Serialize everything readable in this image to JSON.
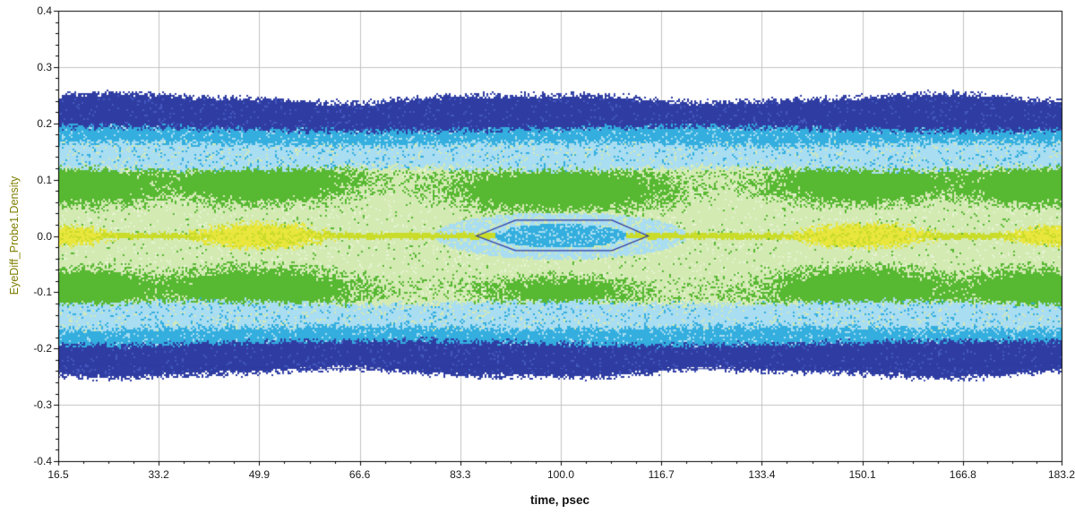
{
  "page": {
    "background": "#ffffff"
  },
  "chart_data": {
    "type": "heatmap",
    "variant": "eye-diagram-density",
    "title": "",
    "xlabel": "time, psec",
    "ylabel": "EyeDiff_Probe1.Density",
    "xlim": [
      16.5,
      183.2
    ],
    "ylim": [
      -0.4,
      0.4
    ],
    "x_ticks": [
      16.5,
      33.2,
      49.9,
      66.6,
      83.3,
      100.0,
      116.7,
      133.4,
      150.1,
      166.8,
      183.2
    ],
    "x_tick_labels": [
      "16.5",
      "33.2",
      "49.9",
      "66.6",
      "83.3",
      "100.0",
      "116.7",
      "133.4",
      "150.1",
      "166.8",
      "183.2"
    ],
    "y_ticks": [
      -0.4,
      -0.3,
      -0.2,
      -0.1,
      0,
      0.1,
      0.2,
      0.3,
      0.4
    ],
    "y_tick_labels": [
      "-0.4",
      "-0.3",
      "-0.2",
      "-0.1",
      "0.0",
      "0.1",
      "0.2",
      "0.3",
      "0.4"
    ],
    "x_minor_per_major": 3,
    "y_minor_per_major": 4,
    "grid": true,
    "colors": {
      "grid": "#c2c2c2",
      "axis": "#000000",
      "tick_label": "#1a1a1a",
      "xlabel": "#111111",
      "ylabel": "#7e7e00",
      "mask": "#3038a0",
      "envelope": "#2e3aa0"
    },
    "palette": {
      "dark_blue": "#2f3da2",
      "blue_speckle": "#4458bf",
      "cyan": "#33aede",
      "light_cyan": "#a9ddf1",
      "pale_green": "#d3eab3",
      "pale_green_light": "#e6f4d2",
      "green": "#57b832",
      "yellow_green": "#c9dc2a",
      "yellow": "#e9e63d"
    },
    "density_model": {
      "outer_edge": 0.245,
      "outer_wave_amp": 0.007,
      "outer_wave_freq": 2.5,
      "outer_wave_phase": 0.4,
      "dark_blue_from": 0.19,
      "cyan_from": 0.163,
      "light_cyan_from": 0.119,
      "pale_green_from": 0.012,
      "center_line_halfwidth": 0.005,
      "green_stripe_v": 0.095,
      "green_stripe_halfwidth": 0.02,
      "edge_jitter": 0.013
    },
    "eye_opening": {
      "t": 100.0,
      "halo_rt": 21,
      "halo_rv": 0.042,
      "core_rt": 11,
      "core_rv": 0.021
    },
    "green_blobs": [
      {
        "t": 20,
        "v": 0.09,
        "st": 12,
        "sv": 0.028,
        "amp": 1
      },
      {
        "t": 20,
        "v": -0.095,
        "st": 12,
        "sv": 0.028,
        "amp": 1
      },
      {
        "t": 49.9,
        "v": 0.095,
        "st": 13,
        "sv": 0.03,
        "amp": 1
      },
      {
        "t": 49.9,
        "v": -0.095,
        "st": 13,
        "sv": 0.03,
        "amp": 1
      },
      {
        "t": 100,
        "v": 0.082,
        "st": 15,
        "sv": 0.032,
        "amp": 1
      },
      {
        "t": 100,
        "v": -0.1,
        "st": 11,
        "sv": 0.024,
        "amp": 0.8
      },
      {
        "t": 150.1,
        "v": 0.095,
        "st": 13,
        "sv": 0.03,
        "amp": 1
      },
      {
        "t": 150.1,
        "v": -0.095,
        "st": 13,
        "sv": 0.03,
        "amp": 1
      },
      {
        "t": 180,
        "v": 0.09,
        "st": 12,
        "sv": 0.028,
        "amp": 1
      },
      {
        "t": 180,
        "v": -0.095,
        "st": 12,
        "sv": 0.028,
        "amp": 1
      }
    ],
    "yellow_blobs": [
      {
        "t": 16.5,
        "v": 0,
        "st": 7,
        "sv": 0.015,
        "amp": 1
      },
      {
        "t": 49.9,
        "v": 0,
        "st": 9,
        "sv": 0.018,
        "amp": 1
      },
      {
        "t": 150.1,
        "v": 0,
        "st": 9,
        "sv": 0.018,
        "amp": 1
      },
      {
        "t": 183.2,
        "v": 0,
        "st": 7,
        "sv": 0.015,
        "amp": 1
      }
    ],
    "cyan_patches": [
      {
        "t": 62,
        "v": -0.135,
        "st": 7,
        "sv": 0.006
      },
      {
        "t": 95,
        "v": -0.142,
        "st": 6,
        "sv": 0.005
      },
      {
        "t": 122,
        "v": -0.135,
        "st": 8,
        "sv": 0.006
      },
      {
        "t": 108,
        "v": 0.139,
        "st": 6,
        "sv": 0.005
      }
    ],
    "mask_polygon": [
      [
        86,
        0
      ],
      [
        92.5,
        0.028
      ],
      [
        108.5,
        0.028
      ],
      [
        114.5,
        0
      ],
      [
        108.5,
        -0.026
      ],
      [
        92.5,
        -0.026
      ]
    ],
    "envelope_line": [
      [
        16.5,
        -0.225
      ],
      [
        35,
        -0.231
      ],
      [
        60,
        -0.236
      ],
      [
        85,
        -0.232
      ],
      [
        100,
        -0.234
      ],
      [
        125,
        -0.236
      ],
      [
        150,
        -0.231
      ],
      [
        170,
        -0.229
      ],
      [
        183.2,
        -0.227
      ]
    ]
  }
}
